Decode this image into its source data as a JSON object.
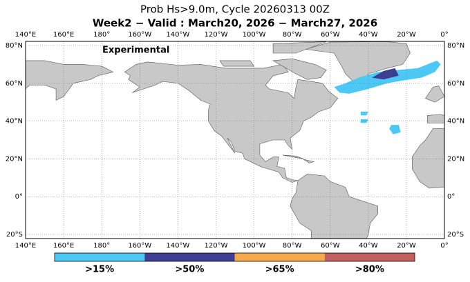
{
  "header": {
    "title": "Prob Hs>9.0m, Cycle 20260313 00Z",
    "subtitle": "Week2 − Valid : March20, 2026 − March27, 2026"
  },
  "map": {
    "annotation": "Experimental",
    "lon_labels": [
      "140°E",
      "160°E",
      "180°",
      "160°W",
      "140°W",
      "120°W",
      "100°W",
      "80°W",
      "60°W",
      "40°W",
      "20°W",
      "0°"
    ],
    "lat_labels": [
      "80°N",
      "60°N",
      "40°N",
      "20°N",
      "0°",
      "20°S"
    ]
  },
  "legend": {
    "items": [
      {
        "label": ">15%",
        "color": "#4cc8f4"
      },
      {
        "label": ">50%",
        "color": "#3f3d92"
      },
      {
        "label": ">65%",
        "color": "#f5a94c"
      },
      {
        "label": ">80%",
        "color": "#c45f5f"
      }
    ]
  }
}
